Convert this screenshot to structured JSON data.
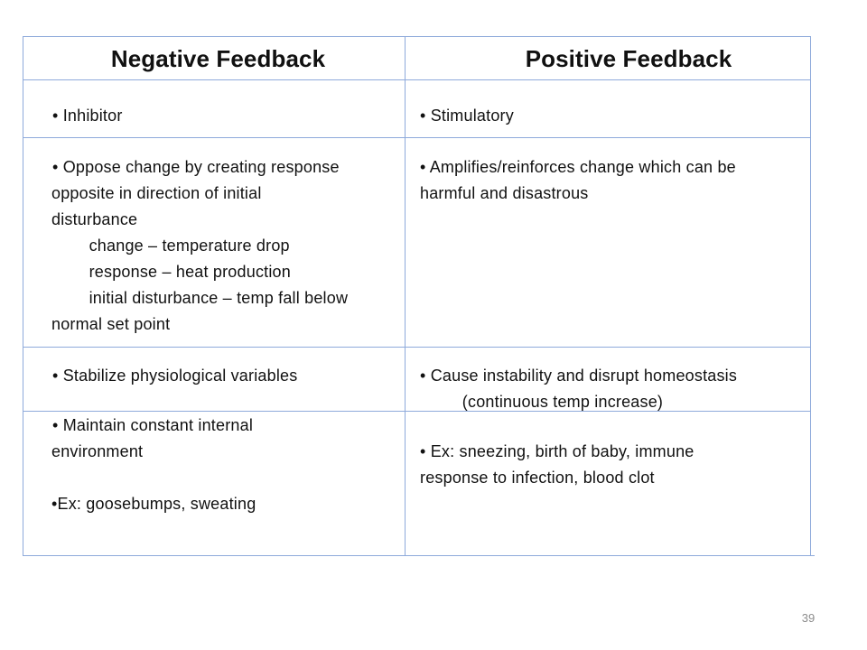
{
  "table": {
    "headers": {
      "negative": "Negative Feedback",
      "positive": "Positive Feedback"
    },
    "rows": [
      {
        "negative": [
          "• Inhibitor"
        ],
        "positive": [
          "• Stimulatory"
        ]
      },
      {
        "negative": [
          "• Oppose change by creating response",
          "opposite in direction of initial",
          "disturbance",
          "        change – temperature drop",
          "        response – heat production",
          "        initial disturbance – temp fall below",
          "normal set point"
        ],
        "positive": [
          "• Amplifies/reinforces change which can be",
          "harmful and disastrous"
        ]
      },
      {
        "negative": [
          "• Stabilize physiological variables"
        ],
        "positive": [
          "• Cause instability and disrupt homeostasis",
          "         (continuous temp increase)"
        ]
      },
      {
        "negative": [
          "• Maintain constant internal",
          "environment",
          "",
          "•Ex: goosebumps, sweating"
        ],
        "positive": [
          "• Ex: sneezing, birth of baby, immune",
          "response to infection, blood clot"
        ]
      }
    ]
  },
  "page_number": "39",
  "colors": {
    "grid_line": "#8eaadb",
    "page_number": "#8c8c8c"
  }
}
